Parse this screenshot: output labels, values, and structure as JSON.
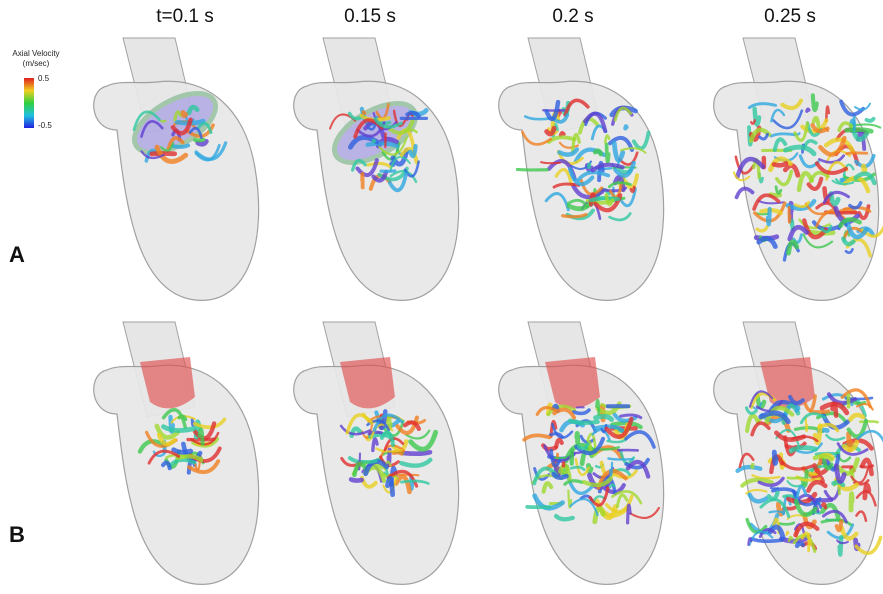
{
  "columns": [
    "t=0.1 s",
    "0.15 s",
    "0.2 s",
    "0.25 s"
  ],
  "rows": [
    "A",
    "B"
  ],
  "colorbar": {
    "title_lines": [
      "Axial Velocity",
      "(m/sec)"
    ],
    "max": 0.5,
    "min": -0.5
  }
}
